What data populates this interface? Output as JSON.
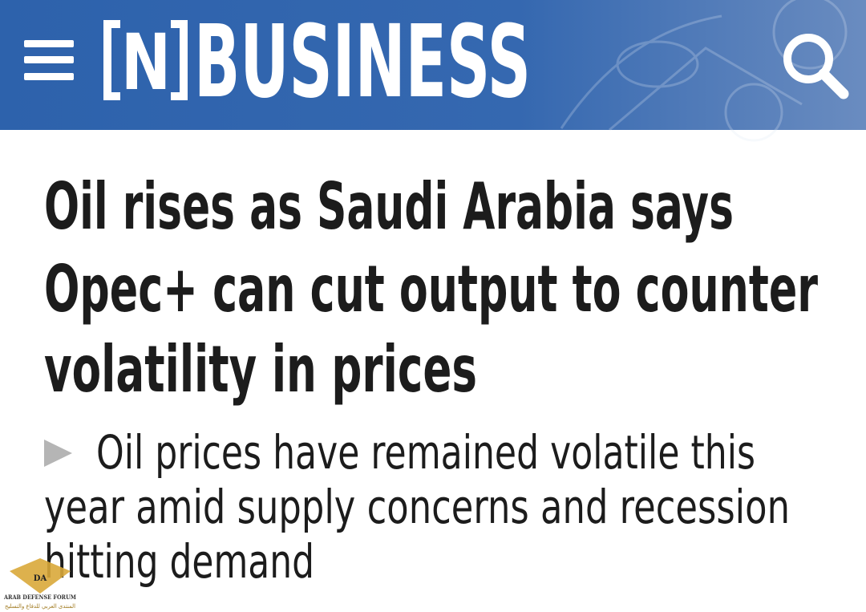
{
  "header": {
    "section": "BUSINESS",
    "logo": "N"
  },
  "article": {
    "headline": [
      "Oil rises as Saudi Arabia says",
      "Opec+ can cut output to counter",
      "volatility in prices"
    ],
    "summary": [
      "Oil prices have remained volatile this",
      "year amid supply concerns and recession",
      "hitting demand"
    ]
  },
  "watermark": {
    "badge": "DA",
    "name": "ARAB DEFENSE FORUM",
    "arabic": "المنتدى العربي للدفاع والتسليح"
  }
}
